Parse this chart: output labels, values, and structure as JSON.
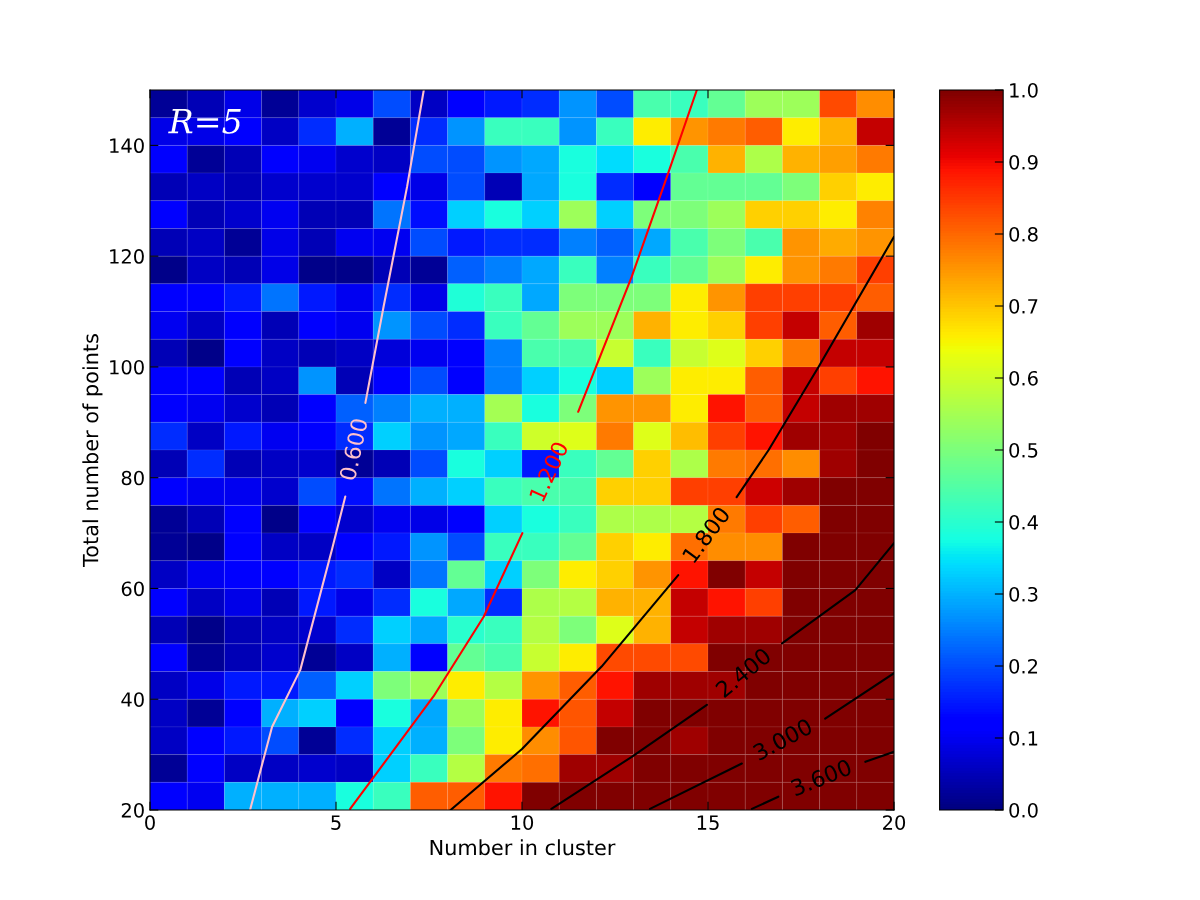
{
  "chart_data": {
    "type": "heatmap",
    "xlabel": "Number in cluster",
    "ylabel": "Total number of points",
    "annotations": [
      "R=5"
    ],
    "xlim": [
      0,
      20
    ],
    "xticks": [
      0,
      5,
      10,
      15,
      20
    ],
    "ylim": [
      20,
      150
    ],
    "yticks": [
      20,
      40,
      60,
      80,
      100,
      120,
      140
    ],
    "clim": [
      0,
      1
    ],
    "cticks": [
      {
        "value": 0,
        "label": "0.0"
      },
      0.1,
      0.2,
      0.3,
      0.4,
      0.5,
      0.6,
      0.7,
      0.8,
      0.9,
      {
        "value": 1,
        "label": "1.0"
      }
    ],
    "cells": [
      [
        0.02,
        0.05,
        0.09,
        0.02,
        0.07,
        0.09,
        0.2,
        0.06,
        0.11,
        0.15,
        0.17,
        0.27,
        0.2,
        0.44,
        0.42,
        0.47,
        0.54,
        0.54,
        0.83,
        0.76
      ],
      [
        0.09,
        0.09,
        0.12,
        0.06,
        0.17,
        0.3,
        0.02,
        0.17,
        0.27,
        0.42,
        0.42,
        0.27,
        0.42,
        0.66,
        0.75,
        0.78,
        0.81,
        0.66,
        0.72,
        0.94
      ],
      [
        0.11,
        0.02,
        0.05,
        0.12,
        0.1,
        0.07,
        0.06,
        0.2,
        0.2,
        0.27,
        0.29,
        0.38,
        0.34,
        0.38,
        0.44,
        0.72,
        0.56,
        0.72,
        0.74,
        0.78
      ],
      [
        0.05,
        0.06,
        0.05,
        0.07,
        0.07,
        0.07,
        0.11,
        0.09,
        0.2,
        0.05,
        0.29,
        0.38,
        0.17,
        0.11,
        0.47,
        0.47,
        0.47,
        0.5,
        0.69,
        0.66
      ],
      [
        0.11,
        0.05,
        0.07,
        0.1,
        0.05,
        0.05,
        0.24,
        0.14,
        0.33,
        0.38,
        0.33,
        0.54,
        0.33,
        0.5,
        0.5,
        0.54,
        0.69,
        0.69,
        0.66,
        0.77
      ],
      [
        0.05,
        0.06,
        0.02,
        0.09,
        0.05,
        0.1,
        0.1,
        0.2,
        0.15,
        0.17,
        0.17,
        0.25,
        0.22,
        0.29,
        0.44,
        0.5,
        0.44,
        0.75,
        0.73,
        0.75
      ],
      [
        0.01,
        0.06,
        0.05,
        0.09,
        0.01,
        0.01,
        0.05,
        0.02,
        0.22,
        0.25,
        0.29,
        0.42,
        0.25,
        0.42,
        0.47,
        0.54,
        0.66,
        0.75,
        0.78,
        0.84
      ],
      [
        0.11,
        0.12,
        0.15,
        0.24,
        0.15,
        0.1,
        0.17,
        0.09,
        0.39,
        0.42,
        0.29,
        0.5,
        0.5,
        0.5,
        0.66,
        0.75,
        0.84,
        0.84,
        0.84,
        0.81
      ],
      [
        0.1,
        0.06,
        0.12,
        0.05,
        0.11,
        0.1,
        0.27,
        0.2,
        0.17,
        0.42,
        0.47,
        0.54,
        0.54,
        0.72,
        0.66,
        0.69,
        0.84,
        0.94,
        0.81,
        0.97
      ],
      [
        0.05,
        0.01,
        0.11,
        0.06,
        0.05,
        0.06,
        0.08,
        0.1,
        0.12,
        0.25,
        0.44,
        0.44,
        0.59,
        0.42,
        0.59,
        0.62,
        0.69,
        0.78,
        0.94,
        0.94
      ],
      [
        0.11,
        0.11,
        0.05,
        0.06,
        0.27,
        0.05,
        0.11,
        0.2,
        0.11,
        0.25,
        0.33,
        0.38,
        0.33,
        0.54,
        0.66,
        0.66,
        0.81,
        0.94,
        0.84,
        0.89
      ],
      [
        0.11,
        0.1,
        0.07,
        0.05,
        0.11,
        0.22,
        0.25,
        0.3,
        0.3,
        0.55,
        0.38,
        0.5,
        0.75,
        0.75,
        0.66,
        0.89,
        0.81,
        0.94,
        0.97,
        0.97
      ],
      [
        0.17,
        0.06,
        0.15,
        0.1,
        0.11,
        0.17,
        0.33,
        0.27,
        0.29,
        0.42,
        0.6,
        0.62,
        0.78,
        0.62,
        0.71,
        0.84,
        0.89,
        0.97,
        0.97,
        1.0
      ],
      [
        0.05,
        0.17,
        0.05,
        0.06,
        0.07,
        0.02,
        0.05,
        0.2,
        0.38,
        0.33,
        0.15,
        0.42,
        0.47,
        0.69,
        0.56,
        0.78,
        0.79,
        0.76,
        0.97,
        1.0
      ],
      [
        0.11,
        0.1,
        0.1,
        0.07,
        0.2,
        0.14,
        0.24,
        0.3,
        0.33,
        0.42,
        0.44,
        0.44,
        0.69,
        0.69,
        0.84,
        0.84,
        0.93,
        0.97,
        1.0,
        1.0
      ],
      [
        0.02,
        0.05,
        0.11,
        0.01,
        0.11,
        0.07,
        0.1,
        0.09,
        0.11,
        0.33,
        0.38,
        0.42,
        0.56,
        0.56,
        0.57,
        0.78,
        0.84,
        0.81,
        1.0,
        1.0
      ],
      [
        0.02,
        0.01,
        0.11,
        0.06,
        0.06,
        0.11,
        0.15,
        0.27,
        0.2,
        0.42,
        0.42,
        0.47,
        0.69,
        0.66,
        0.79,
        0.76,
        0.76,
        1.0,
        1.0,
        1.0
      ],
      [
        0.06,
        0.1,
        0.11,
        0.11,
        0.15,
        0.17,
        0.06,
        0.24,
        0.47,
        0.33,
        0.5,
        0.66,
        0.69,
        0.75,
        0.89,
        1.0,
        0.94,
        1.0,
        1.0,
        1.0
      ],
      [
        0.11,
        0.06,
        0.09,
        0.05,
        0.15,
        0.09,
        0.17,
        0.38,
        0.29,
        0.17,
        0.56,
        0.57,
        0.72,
        0.72,
        0.94,
        0.89,
        0.84,
        1.0,
        1.0,
        1.0
      ],
      [
        0.05,
        0.01,
        0.05,
        0.06,
        0.07,
        0.17,
        0.33,
        0.29,
        0.4,
        0.42,
        0.57,
        0.5,
        0.62,
        0.72,
        0.94,
        0.97,
        0.97,
        1.0,
        1.0,
        1.0
      ],
      [
        0.11,
        0.02,
        0.05,
        0.07,
        0.02,
        0.06,
        0.3,
        0.11,
        0.47,
        0.44,
        0.59,
        0.66,
        0.83,
        0.83,
        0.83,
        1.0,
        1.0,
        1.0,
        1.0,
        1.0
      ],
      [
        0.06,
        0.09,
        0.15,
        0.15,
        0.22,
        0.33,
        0.5,
        0.54,
        0.66,
        0.57,
        0.75,
        0.81,
        0.89,
        0.97,
        0.97,
        0.97,
        1.0,
        1.0,
        1.0,
        1.0
      ],
      [
        0.06,
        0.02,
        0.11,
        0.3,
        0.33,
        0.11,
        0.38,
        0.29,
        0.54,
        0.66,
        0.89,
        0.82,
        0.94,
        1.0,
        1.0,
        1.0,
        1.0,
        1.0,
        1.0,
        1.0
      ],
      [
        0.06,
        0.11,
        0.15,
        0.2,
        0.02,
        0.17,
        0.33,
        0.3,
        0.5,
        0.66,
        0.76,
        0.82,
        1.0,
        1.0,
        0.97,
        1.0,
        1.0,
        1.0,
        1.0,
        1.0
      ],
      [
        0.02,
        0.11,
        0.06,
        0.06,
        0.07,
        0.06,
        0.33,
        0.42,
        0.57,
        0.78,
        0.79,
        0.97,
        0.97,
        1.0,
        1.0,
        1.0,
        1.0,
        1.0,
        1.0,
        1.0
      ],
      [
        0.11,
        0.1,
        0.3,
        0.3,
        0.3,
        0.38,
        0.42,
        0.81,
        0.81,
        0.89,
        1.0,
        1.0,
        1.0,
        1.0,
        1.0,
        1.0,
        1.0,
        1.0,
        1.0,
        1.0
      ]
    ],
    "series": [
      {
        "type": "line",
        "name": "0.600",
        "color": "#ffc0cb",
        "x": [
          2.69,
          3.28,
          4.04,
          4.89,
          5.25,
          5.5,
          5.79,
          6.28,
          6.91,
          7.36
        ],
        "values": [
          20,
          35,
          45.3,
          67,
          76.6,
          null,
          93.5,
          110.9,
          132.5,
          150
        ]
      },
      {
        "type": "line",
        "name": "1.200",
        "color": "#ff0000",
        "x": [
          5.38,
          7.62,
          8.97,
          10.01,
          10.9,
          11.51,
          12.95,
          13.93,
          14.7
        ],
        "values": [
          20.2,
          40.5,
          54.9,
          70,
          null,
          91.9,
          116.3,
          135,
          150
        ]
      },
      {
        "type": "line",
        "name": "1.800",
        "color": "#000000",
        "x": [
          8.08,
          10.0,
          12.14,
          14.2,
          14.94,
          15.77,
          16.63,
          17.97,
          20
        ],
        "values": [
          20,
          31,
          45.9,
          62.4,
          null,
          76.5,
          85,
          100,
          123.5
        ]
      },
      {
        "type": "line",
        "name": "2.400",
        "color": "#000000",
        "x": [
          10.79,
          12.95,
          14.97,
          15.9,
          16.99,
          18.96,
          20
        ],
        "values": [
          20.2,
          29.6,
          39,
          null,
          50.1,
          59.7,
          68.2
        ]
      },
      {
        "type": "line",
        "name": "3.000",
        "color": "#000000",
        "x": [
          13.44,
          15.91,
          17.03,
          18.15,
          20
        ],
        "values": [
          20.2,
          28.4,
          null,
          36.5,
          44.7
        ]
      },
      {
        "type": "line",
        "name": "3.600",
        "color": "#000000",
        "x": [
          16.18,
          16.89,
          18.06,
          19.23,
          20
        ],
        "values": [
          20.2,
          22.4,
          null,
          28.7,
          30.5
        ]
      }
    ]
  }
}
